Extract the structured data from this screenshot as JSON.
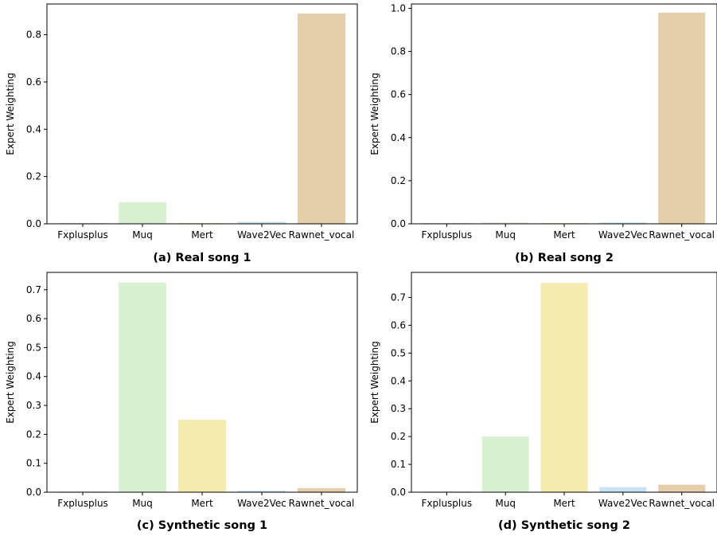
{
  "chart_data": [
    {
      "type": "bar",
      "caption": "(a) Real song 1",
      "ylabel": "Expert Weighting",
      "categories": [
        "Fxplusplus",
        "Muq",
        "Mert",
        "Wave2Vec",
        "Rawnet_vocal"
      ],
      "values": [
        0.002,
        0.092,
        0.001,
        0.008,
        0.89
      ],
      "colors": [
        "#f4c2c2",
        "#d9f0d3",
        "#f5eab0",
        "#c6e2f5",
        "#e5ceab"
      ],
      "ylim": [
        0,
        0.93
      ],
      "yticks": [
        0.0,
        0.2,
        0.4,
        0.6,
        0.8
      ],
      "ytick_labels": [
        "0.0",
        "0.2",
        "0.4",
        "0.6",
        "0.8"
      ],
      "grid": false
    },
    {
      "type": "bar",
      "caption": "(b) Real song 2",
      "ylabel": "Expert Weighting",
      "categories": [
        "Fxplusplus",
        "Muq",
        "Mert",
        "Wave2Vec",
        "Rawnet_vocal"
      ],
      "values": [
        0.001,
        0.006,
        0.004,
        0.006,
        0.98
      ],
      "colors": [
        "#f4c2c2",
        "#d9f0d3",
        "#f5eab0",
        "#c6e2f5",
        "#e5ceab"
      ],
      "ylim": [
        0,
        1.02
      ],
      "yticks": [
        0.0,
        0.2,
        0.4,
        0.6,
        0.8,
        1.0
      ],
      "ytick_labels": [
        "0.0",
        "0.2",
        "0.4",
        "0.6",
        "0.8",
        "1.0"
      ],
      "grid": false
    },
    {
      "type": "bar",
      "caption": "(c) Synthetic song 1",
      "ylabel": "Expert Weighting",
      "categories": [
        "Fxplusplus",
        "Muq",
        "Mert",
        "Wave2Vec",
        "Rawnet_vocal"
      ],
      "values": [
        0.002,
        0.725,
        0.25,
        0.005,
        0.014
      ],
      "colors": [
        "#f4c2c2",
        "#d9f0d3",
        "#f5eab0",
        "#c6e2f5",
        "#e5ceab"
      ],
      "ylim": [
        0,
        0.76
      ],
      "yticks": [
        0.0,
        0.1,
        0.2,
        0.3,
        0.4,
        0.5,
        0.6,
        0.7
      ],
      "ytick_labels": [
        "0.0",
        "0.1",
        "0.2",
        "0.3",
        "0.4",
        "0.5",
        "0.6",
        "0.7"
      ],
      "grid": false
    },
    {
      "type": "bar",
      "caption": "(d) Synthetic song 2",
      "ylabel": "Expert Weighting",
      "categories": [
        "Fxplusplus",
        "Muq",
        "Mert",
        "Wave2Vec",
        "Rawnet_vocal"
      ],
      "values": [
        0.002,
        0.2,
        0.752,
        0.018,
        0.027
      ],
      "colors": [
        "#f4c2c2",
        "#d9f0d3",
        "#f5eab0",
        "#c6e2f5",
        "#e5ceab"
      ],
      "ylim": [
        0,
        0.79
      ],
      "yticks": [
        0.0,
        0.1,
        0.2,
        0.3,
        0.4,
        0.5,
        0.6,
        0.7
      ],
      "ytick_labels": [
        "0.0",
        "0.1",
        "0.2",
        "0.3",
        "0.4",
        "0.5",
        "0.6",
        "0.7"
      ],
      "grid": false
    }
  ]
}
